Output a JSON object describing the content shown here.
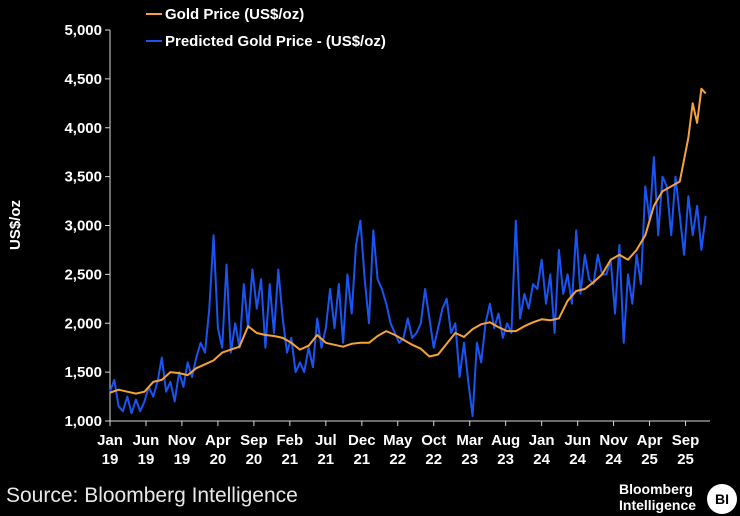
{
  "chart_data": {
    "type": "line",
    "title": "",
    "xlabel": "",
    "ylabel": "US$/oz",
    "ylim": [
      1000,
      5000
    ],
    "yticks": [
      "1,000",
      "1,500",
      "2,000",
      "2,500",
      "3,000",
      "3,500",
      "4,000",
      "4,500",
      "5,000"
    ],
    "ytick_values": [
      1000,
      1500,
      2000,
      2500,
      3000,
      3500,
      4000,
      4500,
      5000
    ],
    "xtick_labels": [
      {
        "month": "Jan",
        "year": "19",
        "t": 2019.0
      },
      {
        "month": "Jun",
        "year": "19",
        "t": 2019.417
      },
      {
        "month": "Nov",
        "year": "19",
        "t": 2019.833
      },
      {
        "month": "Apr",
        "year": "20",
        "t": 2020.25
      },
      {
        "month": "Sep",
        "year": "20",
        "t": 2020.667
      },
      {
        "month": "Feb",
        "year": "21",
        "t": 2021.083
      },
      {
        "month": "Jul",
        "year": "21",
        "t": 2021.5
      },
      {
        "month": "Dec",
        "year": "21",
        "t": 2021.917
      },
      {
        "month": "May",
        "year": "22",
        "t": 2022.333
      },
      {
        "month": "Oct",
        "year": "22",
        "t": 2022.75
      },
      {
        "month": "Mar",
        "year": "23",
        "t": 2023.167
      },
      {
        "month": "Aug",
        "year": "23",
        "t": 2023.583
      },
      {
        "month": "Jan",
        "year": "24",
        "t": 2024.0
      },
      {
        "month": "Jun",
        "year": "24",
        "t": 2024.417
      },
      {
        "month": "Nov",
        "year": "24",
        "t": 2024.833
      },
      {
        "month": "Apr",
        "year": "25",
        "t": 2025.25
      },
      {
        "month": "Sep",
        "year": "25",
        "t": 2025.667
      }
    ],
    "xlim": [
      2019.0,
      2025.95
    ],
    "legend_position": "top-left",
    "series": [
      {
        "name": "Gold Price (US$/oz)",
        "color": "#f4a33a",
        "x": [
          2019.0,
          2019.1,
          2019.2,
          2019.3,
          2019.4,
          2019.5,
          2019.6,
          2019.7,
          2019.8,
          2019.9,
          2020.0,
          2020.1,
          2020.2,
          2020.3,
          2020.4,
          2020.5,
          2020.6,
          2020.7,
          2020.8,
          2020.9,
          2021.0,
          2021.1,
          2021.2,
          2021.3,
          2021.4,
          2021.5,
          2021.6,
          2021.7,
          2021.8,
          2021.9,
          2022.0,
          2022.1,
          2022.2,
          2022.3,
          2022.4,
          2022.5,
          2022.6,
          2022.7,
          2022.8,
          2022.9,
          2023.0,
          2023.1,
          2023.2,
          2023.3,
          2023.4,
          2023.5,
          2023.6,
          2023.7,
          2023.8,
          2023.9,
          2024.0,
          2024.1,
          2024.2,
          2024.3,
          2024.4,
          2024.5,
          2024.6,
          2024.7,
          2024.8,
          2024.9,
          2025.0,
          2025.1,
          2025.2,
          2025.3,
          2025.4,
          2025.5,
          2025.6,
          2025.7,
          2025.75,
          2025.8,
          2025.85,
          2025.9
        ],
        "y": [
          1290,
          1320,
          1300,
          1280,
          1300,
          1400,
          1420,
          1500,
          1490,
          1470,
          1540,
          1580,
          1620,
          1700,
          1730,
          1760,
          1970,
          1900,
          1880,
          1870,
          1850,
          1800,
          1730,
          1770,
          1880,
          1800,
          1780,
          1760,
          1790,
          1800,
          1800,
          1870,
          1920,
          1880,
          1830,
          1780,
          1740,
          1660,
          1680,
          1790,
          1900,
          1860,
          1940,
          1990,
          2010,
          1960,
          1920,
          1920,
          1970,
          2010,
          2040,
          2030,
          2050,
          2230,
          2330,
          2350,
          2420,
          2500,
          2650,
          2700,
          2650,
          2750,
          2900,
          3200,
          3350,
          3400,
          3450,
          3900,
          4250,
          4050,
          4400,
          4350
        ]
      },
      {
        "name": "Predicted Gold Price - (US$/oz)",
        "color": "#1a55f2",
        "x": [
          2019.0,
          2019.05,
          2019.1,
          2019.15,
          2019.2,
          2019.25,
          2019.3,
          2019.35,
          2019.4,
          2019.45,
          2019.5,
          2019.55,
          2019.6,
          2019.65,
          2019.7,
          2019.75,
          2019.8,
          2019.85,
          2019.9,
          2019.95,
          2020.0,
          2020.05,
          2020.1,
          2020.15,
          2020.2,
          2020.25,
          2020.3,
          2020.35,
          2020.4,
          2020.45,
          2020.5,
          2020.55,
          2020.6,
          2020.65,
          2020.7,
          2020.75,
          2020.8,
          2020.85,
          2020.9,
          2020.95,
          2021.0,
          2021.05,
          2021.1,
          2021.15,
          2021.2,
          2021.25,
          2021.3,
          2021.35,
          2021.4,
          2021.45,
          2021.5,
          2021.55,
          2021.6,
          2021.65,
          2021.7,
          2021.75,
          2021.8,
          2021.85,
          2021.9,
          2021.95,
          2022.0,
          2022.05,
          2022.1,
          2022.15,
          2022.2,
          2022.25,
          2022.3,
          2022.35,
          2022.4,
          2022.45,
          2022.5,
          2022.55,
          2022.6,
          2022.65,
          2022.7,
          2022.75,
          2022.8,
          2022.85,
          2022.9,
          2022.95,
          2023.0,
          2023.05,
          2023.1,
          2023.15,
          2023.2,
          2023.25,
          2023.3,
          2023.35,
          2023.4,
          2023.45,
          2023.5,
          2023.55,
          2023.6,
          2023.65,
          2023.7,
          2023.75,
          2023.8,
          2023.85,
          2023.9,
          2023.95,
          2024.0,
          2024.05,
          2024.1,
          2024.15,
          2024.2,
          2024.25,
          2024.3,
          2024.35,
          2024.4,
          2024.45,
          2024.5,
          2024.55,
          2024.6,
          2024.65,
          2024.7,
          2024.75,
          2024.8,
          2024.85,
          2024.9,
          2024.95,
          2025.0,
          2025.05,
          2025.1,
          2025.15,
          2025.2,
          2025.25,
          2025.3,
          2025.35,
          2025.4,
          2025.45,
          2025.5,
          2025.55,
          2025.6,
          2025.65,
          2025.7,
          2025.75,
          2025.8,
          2025.85,
          2025.9
        ],
        "y": [
          1300,
          1420,
          1150,
          1100,
          1250,
          1080,
          1220,
          1100,
          1200,
          1350,
          1250,
          1400,
          1650,
          1300,
          1400,
          1200,
          1500,
          1350,
          1600,
          1450,
          1650,
          1800,
          1700,
          2150,
          2900,
          1950,
          1750,
          2600,
          1700,
          2000,
          1750,
          2400,
          1950,
          2550,
          2150,
          2450,
          1750,
          2400,
          1900,
          2550,
          2050,
          1700,
          1850,
          1500,
          1600,
          1500,
          1750,
          1550,
          2050,
          1750,
          1950,
          2350,
          1950,
          2400,
          1800,
          2500,
          2100,
          2800,
          3050,
          2450,
          2000,
          2950,
          2450,
          2350,
          2200,
          2000,
          1900,
          1800,
          1850,
          2050,
          1850,
          1900,
          2000,
          2350,
          2050,
          1750,
          1950,
          2150,
          2250,
          1900,
          2000,
          1450,
          1800,
          1400,
          1050,
          1800,
          1600,
          2000,
          2200,
          1950,
          2100,
          1850,
          2000,
          1900,
          3050,
          2050,
          2300,
          2150,
          2400,
          2350,
          2650,
          2200,
          2500,
          1900,
          2750,
          2300,
          2500,
          2200,
          2950,
          2300,
          2700,
          2450,
          2400,
          2700,
          2500,
          2500,
          2650,
          2100,
          2800,
          1800,
          2500,
          2200,
          2700,
          2400,
          3400,
          3050,
          3700,
          2900,
          3500,
          3400,
          2900,
          3500,
          3100,
          2700,
          3300,
          2900,
          3200,
          2750,
          3100
        ]
      }
    ],
    "source": "Source: Bloomberg Intelligence",
    "brand": [
      "Bloomberg",
      "Intelligence"
    ],
    "badge": "BI"
  }
}
